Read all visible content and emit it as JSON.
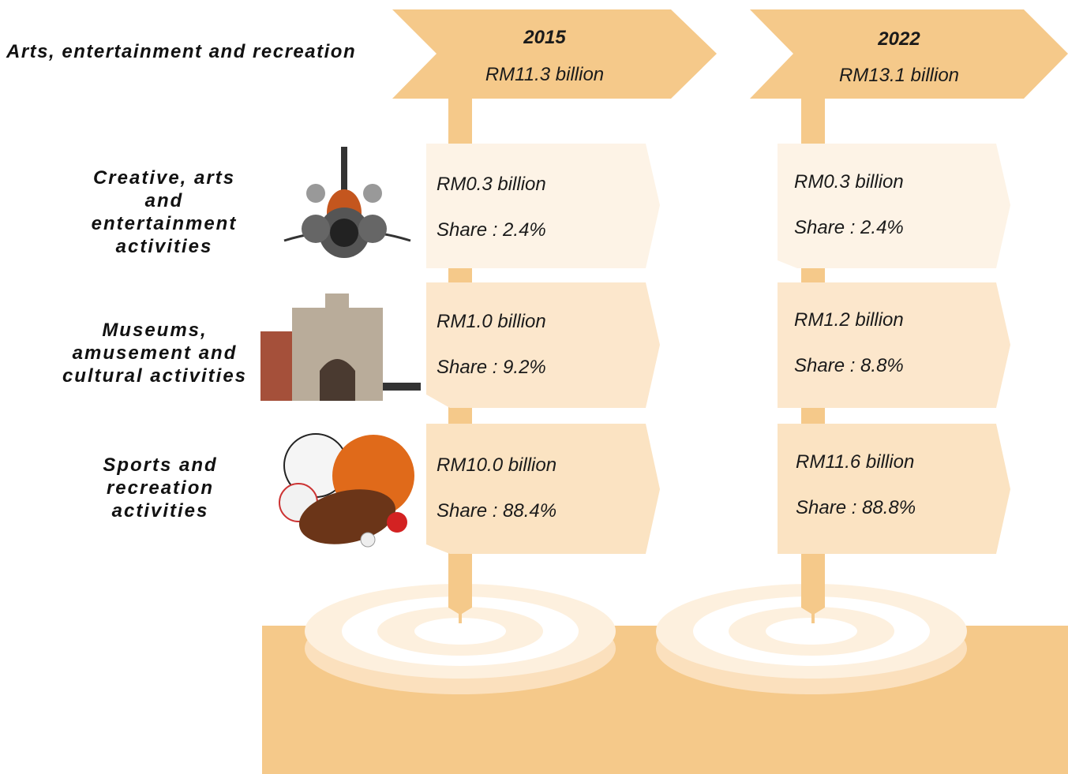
{
  "title": "Arts, entertainment and recreation",
  "categories": [
    "Creative, arts and entertainment activities",
    "Museums, amusement and cultural activities",
    "Sports and recreation activities"
  ],
  "periods": [
    {
      "year": "2015",
      "total": "RM11.3 billion",
      "items": [
        {
          "value": "RM0.3 billion",
          "share": "Share : 2.4%"
        },
        {
          "value": "RM1.0 billion",
          "share": "Share : 9.2%"
        },
        {
          "value": "RM10.0 billion",
          "share": "Share : 88.4%"
        }
      ]
    },
    {
      "year": "2022",
      "total": "RM13.1 billion",
      "items": [
        {
          "value": "RM0.3 billion",
          "share": "Share : 2.4%"
        },
        {
          "value": "RM1.2 billion",
          "share": "Share : 8.8%"
        },
        {
          "value": "RM11.6 billion",
          "share": "Share : 88.8%"
        }
      ]
    }
  ]
}
